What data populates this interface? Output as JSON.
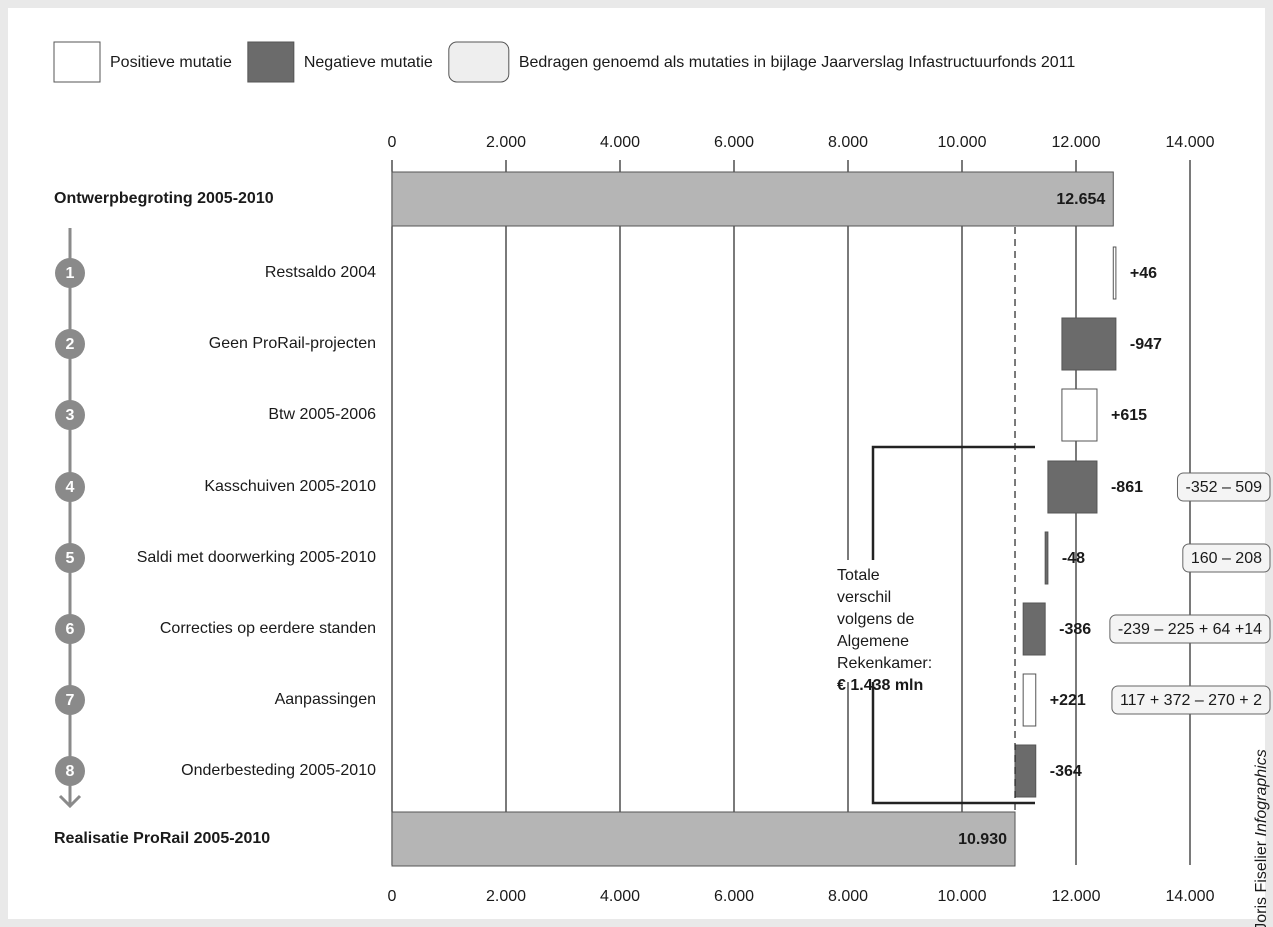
{
  "chart_data": {
    "type": "waterfall",
    "legend": [
      {
        "name": "Positieve mutatie",
        "color": "#ffffff"
      },
      {
        "name": "Negatieve mutatie",
        "color": "#6b6b6b"
      },
      {
        "name": "Bedragen genoemd als mutaties in bijlage Jaarverslag Infastructuurfonds 2011",
        "color": "#eeeeee"
      }
    ],
    "categories": [
      "Ontwerpbegroting 2005-2010",
      "Restsaldo 2004",
      "Geen ProRail-projecten",
      "Btw 2005-2006",
      "Kasschuiven 2005-2010",
      "Saldi met doorwerking 2005-2010",
      "Correcties op eerdere standen",
      "Aanpassingen",
      "Onderbesteding 2005-2010",
      "Realisatie ProRail 2005-2010"
    ],
    "step_numbers": [
      null,
      1,
      2,
      3,
      4,
      5,
      6,
      7,
      8,
      null
    ],
    "measure": [
      "total",
      "relative",
      "relative",
      "relative",
      "relative",
      "relative",
      "relative",
      "relative",
      "relative",
      "total"
    ],
    "values": [
      12654,
      46,
      -947,
      615,
      -861,
      -48,
      -386,
      221,
      -364,
      10930
    ],
    "value_labels": [
      "12.654",
      "+46",
      "-947",
      "+615",
      "-861",
      "-48",
      "-386",
      "+221",
      "-364",
      "10.930"
    ],
    "row_notes": [
      null,
      null,
      null,
      null,
      "-352 – 509",
      "160 – 208",
      "-239 – 225 + 64 +14",
      "117 + 372 – 270 + 2",
      null,
      null
    ],
    "total_color": "#b5b5b5",
    "xlim": [
      0,
      14000
    ],
    "xticks": [
      0,
      {
        "value": 2000,
        "label": "2.000"
      },
      {
        "value": 4000,
        "label": "4.000"
      },
      {
        "value": 6000,
        "label": "6.000"
      },
      {
        "value": 8000,
        "label": "8.000"
      },
      {
        "value": 10000,
        "label": "10.000"
      },
      {
        "value": 12000,
        "label": "12.000"
      },
      {
        "value": 14000,
        "label": "14.000"
      }
    ],
    "grid": true,
    "annotation": {
      "lines": [
        "Totale",
        "verschil",
        "volgens de",
        "Algemene",
        "Rekenkamer:"
      ],
      "emphasis": "€ 1.438 mln"
    },
    "credit": {
      "name": "Joris Fiselier",
      "suffix": "Infographics"
    }
  }
}
